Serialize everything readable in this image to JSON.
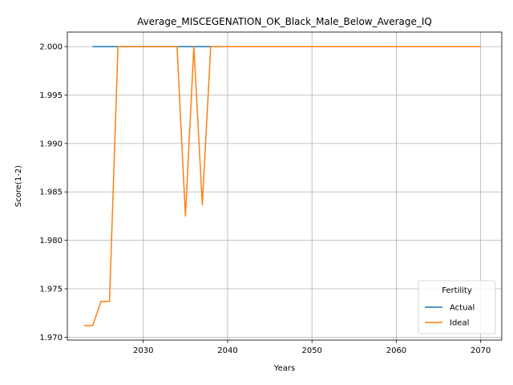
{
  "chart_data": {
    "type": "line",
    "title": "Average_MISCEGENATION_OK_Black_Male_Below_Average_IQ",
    "xlabel": "Years",
    "ylabel": "Score(1-2)",
    "xlim": [
      2021,
      2072.5
    ],
    "ylim": [
      1.9697,
      2.0015
    ],
    "xticks": [
      2030,
      2040,
      2050,
      2060,
      2070
    ],
    "yticks": [
      1.97,
      1.975,
      1.98,
      1.985,
      1.99,
      1.995,
      2.0
    ],
    "ytick_labels": [
      "1.970",
      "1.975",
      "1.980",
      "1.985",
      "1.990",
      "1.995",
      "2.000"
    ],
    "grid": true,
    "legend": {
      "title": "Fertility",
      "placement": "lower-right"
    },
    "series": [
      {
        "name": "Actual",
        "color": "#1f77b4",
        "x": [
          2024,
          2038
        ],
        "y": [
          2.0,
          2.0
        ]
      },
      {
        "name": "Ideal",
        "color": "#ff7f0e",
        "x": [
          2023,
          2024,
          2025,
          2026,
          2027,
          2028,
          2029,
          2030,
          2031,
          2032,
          2033,
          2034,
          2035,
          2036,
          2037,
          2038,
          2039,
          2040,
          2045,
          2050,
          2055,
          2060,
          2065,
          2070
        ],
        "y": [
          1.9712,
          1.9712,
          1.9737,
          1.9737,
          2.0,
          2.0,
          2.0,
          2.0,
          2.0,
          2.0,
          2.0,
          2.0,
          1.9825,
          2.0,
          1.9837,
          2.0,
          2.0,
          2.0,
          2.0,
          2.0,
          2.0,
          2.0,
          2.0,
          2.0
        ]
      }
    ]
  }
}
